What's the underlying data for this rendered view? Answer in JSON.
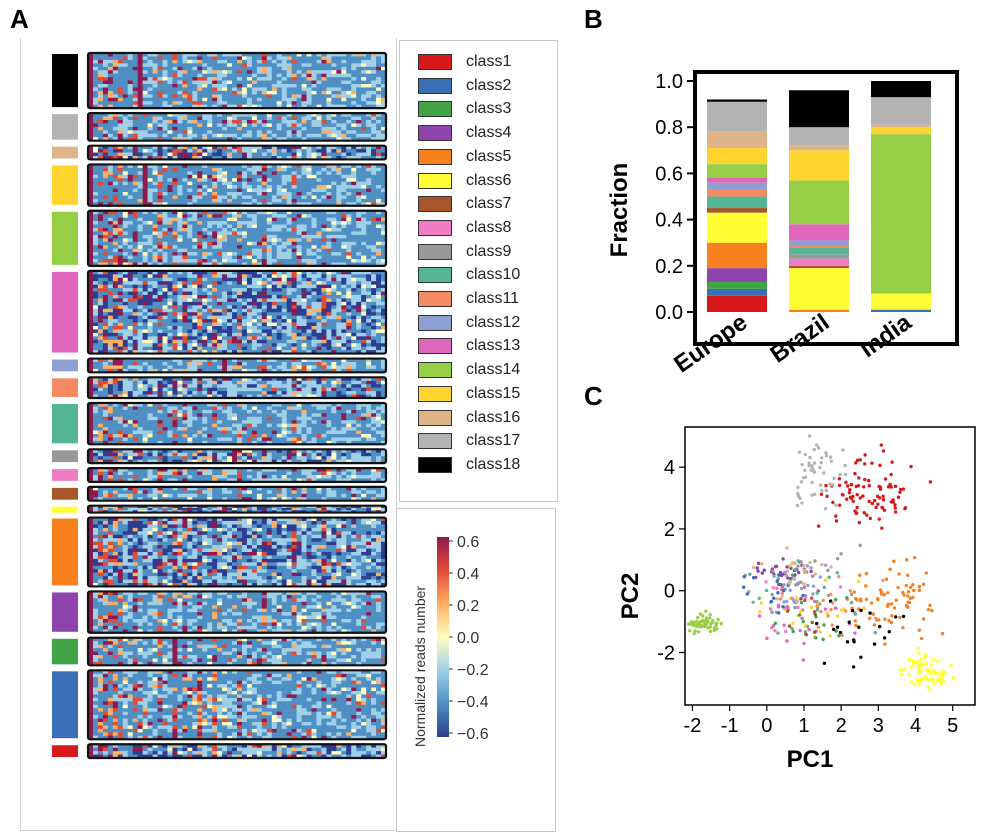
{
  "panels": {
    "a": "A",
    "b": "B",
    "c": "C"
  },
  "heatmap": {
    "blocks": [
      {
        "class": "class18",
        "rows": 8
      },
      {
        "class": "class17",
        "rows": 4
      },
      {
        "class": "class16",
        "rows": 2
      },
      {
        "class": "class15",
        "rows": 6
      },
      {
        "class": "class14",
        "rows": 8
      },
      {
        "class": "class13",
        "rows": 12
      },
      {
        "class": "class12",
        "rows": 2
      },
      {
        "class": "class11",
        "rows": 3
      },
      {
        "class": "class10",
        "rows": 6
      },
      {
        "class": "class9",
        "rows": 2
      },
      {
        "class": "class8",
        "rows": 2
      },
      {
        "class": "class7",
        "rows": 2
      },
      {
        "class": "class6",
        "rows": 1
      },
      {
        "class": "class5",
        "rows": 10
      },
      {
        "class": "class4",
        "rows": 6
      },
      {
        "class": "class3",
        "rows": 4
      },
      {
        "class": "class2",
        "rows": 10
      },
      {
        "class": "class1",
        "rows": 2
      }
    ]
  },
  "legend": {
    "entries": [
      {
        "label": "class1",
        "color": "#d7191c"
      },
      {
        "label": "class2",
        "color": "#3a6fb5"
      },
      {
        "label": "class3",
        "color": "#41a547"
      },
      {
        "label": "class4",
        "color": "#8e44ad"
      },
      {
        "label": "class5",
        "color": "#f77f1e"
      },
      {
        "label": "class6",
        "color": "#ffff33"
      },
      {
        "label": "class7",
        "color": "#a65628"
      },
      {
        "label": "class8",
        "color": "#f07cc4"
      },
      {
        "label": "class9",
        "color": "#999999"
      },
      {
        "label": "class10",
        "color": "#55b597"
      },
      {
        "label": "class11",
        "color": "#f58a63"
      },
      {
        "label": "class12",
        "color": "#8ea0d2"
      },
      {
        "label": "class13",
        "color": "#e066bd"
      },
      {
        "label": "class14",
        "color": "#96cf45"
      },
      {
        "label": "class15",
        "color": "#fed42f"
      },
      {
        "label": "class16",
        "color": "#e0b48a"
      },
      {
        "label": "class17",
        "color": "#b3b3b3"
      },
      {
        "label": "class18",
        "color": "#000000"
      }
    ]
  },
  "colorbar": {
    "label": "Normalized reads number",
    "ticks": [
      "0.6",
      "0.4",
      "0.2",
      "0.0",
      "−0.2",
      "−0.4",
      "−0.6"
    ],
    "range": [
      -0.6,
      0.6
    ],
    "colors": [
      "#2c3d92",
      "#4f8fc3",
      "#9fd0e8",
      "#fffebf",
      "#fdb065",
      "#e34a33",
      "#8e1a4e"
    ]
  },
  "chart_data": [
    {
      "type": "bar",
      "stacked": true,
      "ylabel": "Fraction",
      "ylim": [
        0,
        1.0
      ],
      "yticks": [
        "0.0",
        "0.2",
        "0.4",
        "0.6",
        "0.8",
        "1.0"
      ],
      "categories": [
        "Europe",
        "Brazil",
        "India"
      ],
      "series": [
        {
          "name": "class1",
          "values": [
            0.07,
            0.0,
            0.0
          ]
        },
        {
          "name": "class2",
          "values": [
            0.03,
            0.0,
            0.01
          ]
        },
        {
          "name": "class3",
          "values": [
            0.03,
            0.0,
            0.0
          ]
        },
        {
          "name": "class4",
          "values": [
            0.06,
            0.0,
            0.0
          ]
        },
        {
          "name": "class5",
          "values": [
            0.11,
            0.01,
            0.0
          ]
        },
        {
          "name": "class6",
          "values": [
            0.13,
            0.18,
            0.07
          ]
        },
        {
          "name": "class7",
          "values": [
            0.02,
            0.01,
            0.0
          ]
        },
        {
          "name": "class8",
          "values": [
            0.0,
            0.03,
            0.0
          ]
        },
        {
          "name": "class9",
          "values": [
            0.0,
            0.02,
            0.0
          ]
        },
        {
          "name": "class10",
          "values": [
            0.05,
            0.03,
            0.0
          ]
        },
        {
          "name": "class11",
          "values": [
            0.03,
            0.01,
            0.0
          ]
        },
        {
          "name": "class12",
          "values": [
            0.03,
            0.02,
            0.0
          ]
        },
        {
          "name": "class13",
          "values": [
            0.02,
            0.07,
            0.0
          ]
        },
        {
          "name": "class14",
          "values": [
            0.06,
            0.19,
            0.69
          ]
        },
        {
          "name": "class15",
          "values": [
            0.07,
            0.13,
            0.03
          ]
        },
        {
          "name": "class16",
          "values": [
            0.07,
            0.02,
            0.01
          ]
        },
        {
          "name": "class17",
          "values": [
            0.13,
            0.08,
            0.12
          ]
        },
        {
          "name": "class18",
          "values": [
            0.01,
            0.16,
            0.07
          ]
        }
      ]
    },
    {
      "type": "scatter",
      "xlabel": "PC1",
      "ylabel": "PC2",
      "xlim": [
        -2.2,
        5.6
      ],
      "ylim": [
        -3.7,
        5.3
      ],
      "xticks": [
        "-2",
        "-1",
        "0",
        "1",
        "2",
        "3",
        "4",
        "5"
      ],
      "yticks": [
        "-2",
        "0",
        "2",
        "4"
      ],
      "series": [
        {
          "name": "class1",
          "center": [
            2.8,
            3.2
          ],
          "spread": [
            1.0,
            0.9
          ],
          "count": 90
        },
        {
          "name": "class17",
          "center": [
            1.3,
            3.8
          ],
          "spread": [
            0.7,
            0.9
          ],
          "count": 50
        },
        {
          "name": "class14",
          "center": [
            -1.7,
            -1.1
          ],
          "spread": [
            0.35,
            0.25
          ],
          "count": 55
        },
        {
          "name": "class6",
          "center": [
            4.3,
            -2.6
          ],
          "spread": [
            0.6,
            0.45
          ],
          "count": 75
        },
        {
          "name": "class5",
          "center": [
            3.3,
            -0.3
          ],
          "spread": [
            1.0,
            0.9
          ],
          "count": 75
        },
        {
          "name": "class4",
          "center": [
            0.6,
            0.6
          ],
          "spread": [
            0.7,
            0.35
          ],
          "count": 35
        },
        {
          "name": "class12",
          "center": [
            0.4,
            0.1
          ],
          "spread": [
            0.8,
            0.6
          ],
          "count": 25
        },
        {
          "name": "class10",
          "center": [
            1.2,
            -0.3
          ],
          "spread": [
            1.3,
            1.0
          ],
          "count": 25
        },
        {
          "name": "class13",
          "center": [
            0.9,
            -0.9
          ],
          "spread": [
            1.2,
            0.9
          ],
          "count": 25
        },
        {
          "name": "class15",
          "center": [
            1.4,
            -0.5
          ],
          "spread": [
            1.3,
            1.0
          ],
          "count": 25
        },
        {
          "name": "class18",
          "center": [
            2.3,
            -1.5
          ],
          "spread": [
            1.2,
            0.8
          ],
          "count": 22
        },
        {
          "name": "class9",
          "center": [
            1.0,
            0.4
          ],
          "spread": [
            1.0,
            0.9
          ],
          "count": 20
        },
        {
          "name": "class16",
          "center": [
            0.7,
            0.7
          ],
          "spread": [
            1.0,
            0.8
          ],
          "count": 20
        },
        {
          "name": "class8",
          "center": [
            0.6,
            -0.3
          ],
          "spread": [
            1.0,
            0.8
          ],
          "count": 15
        },
        {
          "name": "class2",
          "center": [
            0.2,
            0.0
          ],
          "spread": [
            0.8,
            0.6
          ],
          "count": 15
        },
        {
          "name": "class3",
          "center": [
            1.5,
            -1.0
          ],
          "spread": [
            1.0,
            0.8
          ],
          "count": 15
        },
        {
          "name": "class11",
          "center": [
            1.8,
            -0.5
          ],
          "spread": [
            1.0,
            0.8
          ],
          "count": 15
        },
        {
          "name": "class7",
          "center": [
            1.0,
            -0.6
          ],
          "spread": [
            0.9,
            0.8
          ],
          "count": 10
        }
      ]
    }
  ]
}
